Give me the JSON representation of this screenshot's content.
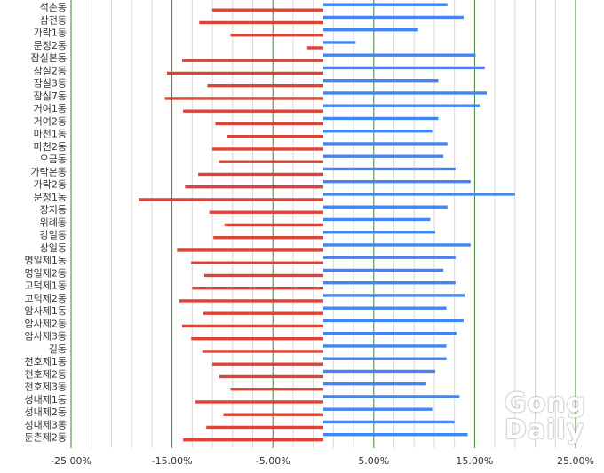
{
  "chart_data": {
    "type": "bar",
    "orientation": "horizontal",
    "xlim": [
      -0.25,
      0.25
    ],
    "tick_labels": [
      "-25.00%",
      "-15.00%",
      "-5.00%",
      "5.00%",
      "15.00%",
      "25.00%"
    ],
    "grid": true,
    "categories": [
      "석촌동",
      "삼전동",
      "가락1동",
      "문정2동",
      "잠실본동",
      "잠실2동",
      "잠실3동",
      "잠실7동",
      "거여1동",
      "거여2동",
      "마천1동",
      "마천2동",
      "오금동",
      "가락본동",
      "가락2동",
      "문정1동",
      "장지동",
      "위례동",
      "강일동",
      "상일동",
      "명일제1동",
      "명일제2동",
      "고덕제1동",
      "고덕제2동",
      "암사제1동",
      "암사제2동",
      "암사제3동",
      "길동",
      "천호제1동",
      "천호제2동",
      "천호제3동",
      "성내제1동",
      "성내제2동",
      "성내제3동",
      "둔촌제2동"
    ],
    "series": [
      {
        "color": "#db4437",
        "values": [
          -0.11,
          -0.123,
          -0.092,
          -0.016,
          -0.14,
          -0.155,
          -0.115,
          -0.157,
          -0.139,
          -0.107,
          -0.095,
          -0.11,
          -0.104,
          -0.124,
          -0.137,
          -0.183,
          -0.113,
          -0.098,
          -0.109,
          -0.145,
          -0.131,
          -0.118,
          -0.13,
          -0.143,
          -0.119,
          -0.14,
          -0.131,
          -0.12,
          -0.11,
          -0.103,
          -0.092,
          -0.127,
          -0.099,
          -0.116,
          -0.139
        ]
      },
      {
        "color": "#4285f4",
        "values": [
          0.123,
          0.139,
          0.094,
          0.032,
          0.151,
          0.16,
          0.114,
          0.162,
          0.155,
          0.114,
          0.108,
          0.123,
          0.119,
          0.131,
          0.146,
          0.19,
          0.123,
          0.106,
          0.111,
          0.146,
          0.131,
          0.119,
          0.131,
          0.14,
          0.122,
          0.139,
          0.132,
          0.122,
          0.122,
          0.111,
          0.102,
          0.135,
          0.108,
          0.13,
          0.143
        ]
      }
    ]
  },
  "watermark": {
    "line1": "Gong",
    "line2": "Daily"
  },
  "colors": {
    "grid_major": "#3c8a2e",
    "grid_minor": "#d9d9d9"
  }
}
